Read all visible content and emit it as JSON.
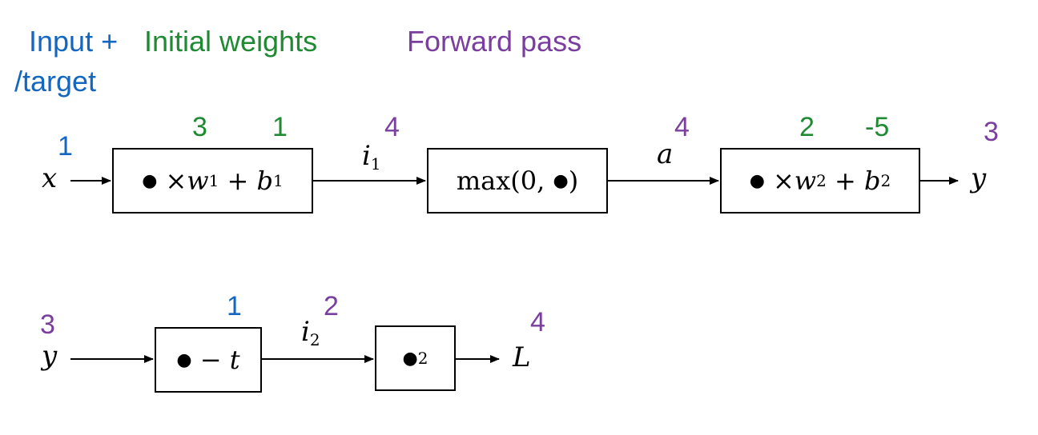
{
  "legend": {
    "input_line1": "Input +",
    "input_line2": "/target",
    "weights": "Initial weights",
    "forward": "Forward pass"
  },
  "colors": {
    "input": "#1367c0",
    "weights": "#1f8a32",
    "forward": "#7a3f9e"
  },
  "top_row": {
    "x_label": "x",
    "x_value": "1",
    "box1": {
      "bullet": "●",
      "op": "× ",
      "w": "w",
      "w_sub": "1",
      "plus": " + ",
      "b": "b",
      "b_sub": "1"
    },
    "w1_value": "3",
    "b1_value": "1",
    "i1_label": "i",
    "i1_sub": "1",
    "i1_value": "4",
    "box2": {
      "text": "max(0, ",
      "bullet": "●",
      "close": ")"
    },
    "a_label": "a",
    "a_value": "4",
    "box3": {
      "bullet": "●",
      "op": "× ",
      "w": "w",
      "w_sub": "2",
      "plus": " + ",
      "b": "b",
      "b_sub": "2"
    },
    "w2_value": "2",
    "b2_value": "-5",
    "y_label": "y",
    "y_value": "3"
  },
  "bottom_row": {
    "y_label": "y",
    "y_value": "3",
    "box1": {
      "bullet": "●",
      "op": " − ",
      "t": "t"
    },
    "t_value": "1",
    "i2_label": "i",
    "i2_sub": "2",
    "i2_value": "2",
    "box2": {
      "bullet": "●",
      "sup": "2"
    },
    "L_label": "L",
    "L_value": "4"
  }
}
